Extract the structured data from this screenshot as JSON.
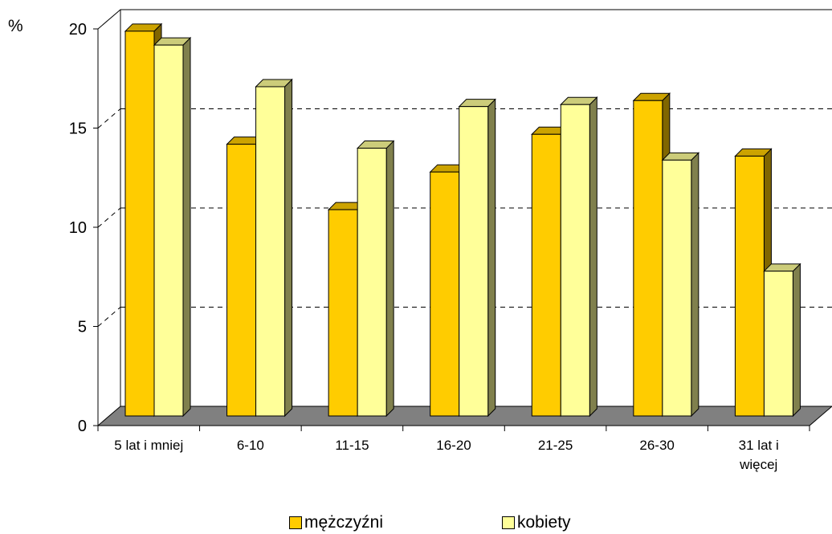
{
  "chart_data": {
    "type": "bar",
    "ylabel": "%",
    "ylim": [
      0,
      20
    ],
    "yticks": [
      "0",
      "5",
      "10",
      "15",
      "20"
    ],
    "grid": "horizontal dashed",
    "legend_position": "bottom",
    "categories": [
      "5 lat i mniej",
      "6-10",
      "11-15",
      "16-20",
      "21-25",
      "26-30",
      "31 lat i więcej"
    ],
    "series": [
      {
        "name": "mężczyźni",
        "color": "#FFCC00",
        "values": [
          19.4,
          13.7,
          10.4,
          12.3,
          14.2,
          15.9,
          13.1
        ]
      },
      {
        "name": "kobiety",
        "color": "#FFFF99",
        "values": [
          18.7,
          16.6,
          13.5,
          15.6,
          15.7,
          12.9,
          7.3
        ]
      }
    ]
  }
}
